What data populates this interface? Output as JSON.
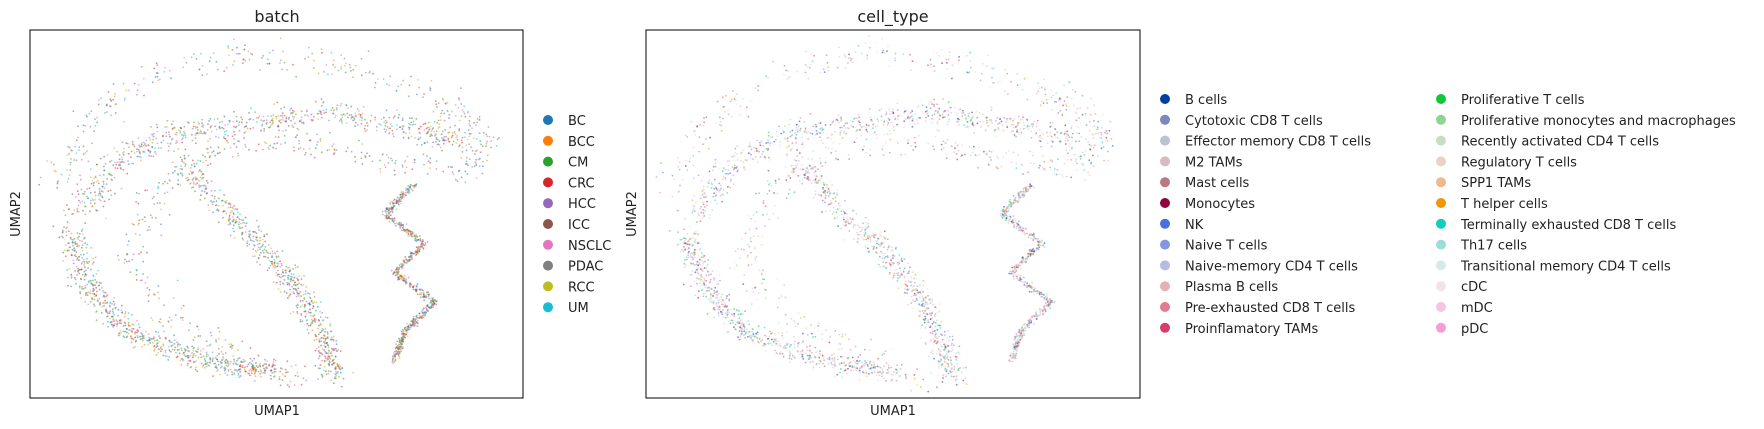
{
  "chart_data": [
    {
      "type": "scatter",
      "title": "batch",
      "xlabel": "UMAP1",
      "ylabel": "UMAP2",
      "grid": false,
      "ticks": false,
      "legend_position": "right",
      "legend": [
        {
          "label": "BC",
          "color": "#1f77b4"
        },
        {
          "label": "BCC",
          "color": "#ff7f0e"
        },
        {
          "label": "CM",
          "color": "#2ca02c"
        },
        {
          "label": "CRC",
          "color": "#d62728"
        },
        {
          "label": "HCC",
          "color": "#9467bd"
        },
        {
          "label": "ICC",
          "color": "#8c564b"
        },
        {
          "label": "NSCLC",
          "color": "#e377c2"
        },
        {
          "label": "PDAC",
          "color": "#7f7f7f"
        },
        {
          "label": "RCC",
          "color": "#bcbd22"
        },
        {
          "label": "UM",
          "color": "#17becf"
        }
      ]
    },
    {
      "type": "scatter",
      "title": "cell_type",
      "xlabel": "UMAP1",
      "ylabel": "UMAP2",
      "grid": false,
      "ticks": false,
      "legend_position": "right",
      "legend_columns": 2,
      "legend": [
        {
          "label": "B cells",
          "color": "#023fa5"
        },
        {
          "label": "Cytotoxic CD8 T cells",
          "color": "#7d87b9"
        },
        {
          "label": "Effector memory CD8 T cells",
          "color": "#bec1d4"
        },
        {
          "label": "M2 TAMs",
          "color": "#d6bcc0"
        },
        {
          "label": "Mast cells",
          "color": "#bb7784"
        },
        {
          "label": "Monocytes",
          "color": "#8e063b"
        },
        {
          "label": "NK",
          "color": "#4a6fe3"
        },
        {
          "label": "Naive T cells",
          "color": "#8595e1"
        },
        {
          "label": "Naive-memory CD4 T cells",
          "color": "#b5bbe3"
        },
        {
          "label": "Plasma B cells",
          "color": "#e6afb9"
        },
        {
          "label": "Pre-exhausted CD8 T cells",
          "color": "#e07b91"
        },
        {
          "label": "Proinflamatory TAMs",
          "color": "#d33f6a"
        },
        {
          "label": "Proliferative T cells",
          "color": "#11c638"
        },
        {
          "label": "Proliferative monocytes and macrophages",
          "color": "#8dd593"
        },
        {
          "label": "Recently activated CD4 T cells",
          "color": "#c6dec7"
        },
        {
          "label": "Regulatory T cells",
          "color": "#ead3c6"
        },
        {
          "label": "SPP1 TAMs",
          "color": "#f0b98d"
        },
        {
          "label": "T helper cells",
          "color": "#ef9708"
        },
        {
          "label": "Terminally exhausted CD8 T cells",
          "color": "#0fcfc0"
        },
        {
          "label": "Th17 cells",
          "color": "#9cded6"
        },
        {
          "label": "Transitional memory CD4 T cells",
          "color": "#d5eae7"
        },
        {
          "label": "cDC",
          "color": "#f3e1eb"
        },
        {
          "label": "mDC",
          "color": "#f6c4e1"
        },
        {
          "label": "pDC",
          "color": "#f79cd4"
        }
      ]
    }
  ]
}
